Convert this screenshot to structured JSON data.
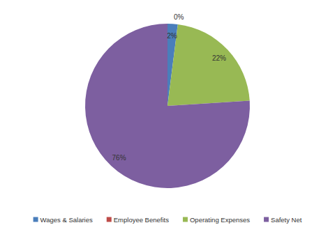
{
  "chart_data": {
    "type": "pie",
    "categories": [
      "Wages & Salaries",
      "Employee Benefits",
      "Operating Expenses",
      "Safety Net"
    ],
    "values": [
      2,
      0,
      22,
      76
    ],
    "value_labels": [
      "2%",
      "0%",
      "22%",
      "76%"
    ],
    "colors": [
      "#4a7ebb",
      "#be4b48",
      "#98b954",
      "#7d5fa0"
    ],
    "data_labels": true,
    "legend": "bottom"
  }
}
